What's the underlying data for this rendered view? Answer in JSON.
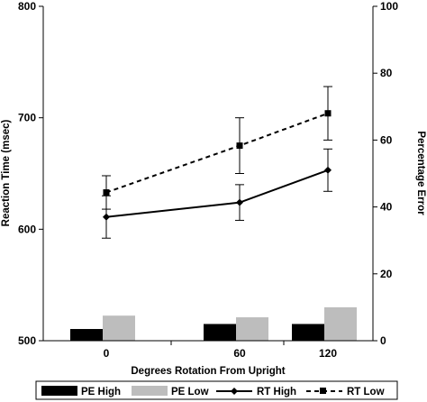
{
  "chart_data": {
    "type": "bar",
    "title": "",
    "xlabel": "Degrees Rotation From Upright",
    "ylabel": "Reaction Time (msec)",
    "y2label": "Percentage Error",
    "categories": [
      "0",
      "60",
      "120"
    ],
    "ylim": [
      500,
      800
    ],
    "yticks": [
      "500",
      "600",
      "700",
      "800"
    ],
    "y2lim": [
      0,
      100
    ],
    "y2ticks": [
      "0",
      "20",
      "40",
      "60",
      "80",
      "100"
    ],
    "grid": false,
    "legend_position": "bottom",
    "series": [
      {
        "name": "PE High",
        "type": "bar",
        "axis": "right",
        "color": "#000000",
        "values": [
          3.5,
          5,
          5
        ]
      },
      {
        "name": "PE Low",
        "type": "bar",
        "axis": "right",
        "color": "#bdbdbd",
        "values": [
          7.5,
          7,
          10
        ]
      },
      {
        "name": "RT High",
        "type": "line",
        "axis": "left",
        "color": "#000000",
        "marker": "diamond",
        "dash": "solid",
        "values": [
          611,
          624,
          653
        ],
        "error": [
          19,
          16,
          19
        ]
      },
      {
        "name": "RT Low",
        "type": "line",
        "axis": "left",
        "color": "#000000",
        "marker": "square",
        "dash": "dashed",
        "values": [
          633,
          675,
          704
        ],
        "error": [
          15,
          25,
          24
        ]
      }
    ]
  }
}
